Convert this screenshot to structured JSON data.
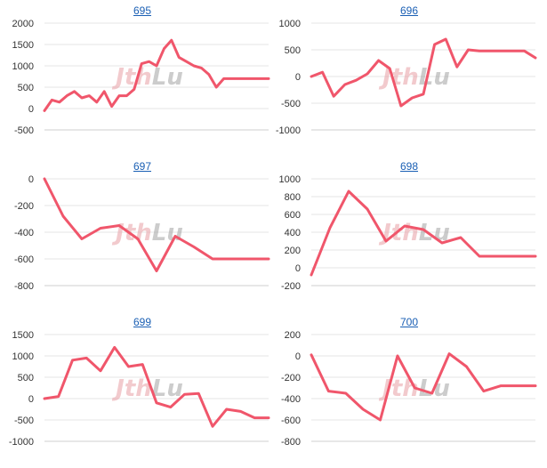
{
  "colors": {
    "line": "#f0566b",
    "title_link": "#1a5fb4",
    "watermark_red": "#e8a0a6",
    "watermark_gray": "#9a9a9a"
  },
  "watermark": {
    "part1": "Jth",
    "part2": "Lu"
  },
  "chart_data": [
    {
      "type": "line",
      "title": "695",
      "ylim": [
        -500,
        2000
      ],
      "yticks": [
        2000,
        1500,
        1000,
        500,
        0,
        -500
      ],
      "x": [
        0,
        1,
        2,
        3,
        4,
        5,
        6,
        7,
        8,
        9,
        10,
        11,
        12,
        13,
        14,
        15,
        16,
        17,
        18,
        19,
        20,
        21,
        22,
        23,
        24,
        25,
        26,
        27,
        28,
        29,
        30
      ],
      "values": [
        -50,
        200,
        150,
        300,
        400,
        250,
        300,
        150,
        400,
        50,
        300,
        300,
        450,
        1050,
        1100,
        1000,
        1400,
        1600,
        1200,
        1100,
        1000,
        950,
        800,
        500,
        700,
        700,
        700,
        700,
        700,
        700,
        700
      ]
    },
    {
      "type": "line",
      "title": "696",
      "ylim": [
        -1000,
        1000
      ],
      "yticks": [
        1000,
        500,
        0,
        -500,
        -1000
      ],
      "x": [
        0,
        1,
        2,
        3,
        4,
        5,
        6,
        7,
        8,
        9,
        10,
        11,
        12,
        13,
        14,
        15,
        16,
        17,
        18,
        19,
        20
      ],
      "values": [
        0,
        80,
        -370,
        -150,
        -70,
        50,
        300,
        150,
        -550,
        -400,
        -330,
        600,
        700,
        180,
        500,
        480,
        480,
        480,
        480,
        480,
        350
      ]
    },
    {
      "type": "line",
      "title": "697",
      "ylim": [
        -800,
        0
      ],
      "yticks": [
        0,
        -200,
        -400,
        -600,
        -800
      ],
      "x": [
        0,
        1,
        2,
        3,
        4,
        5,
        6,
        7,
        8,
        9,
        10,
        11,
        12
      ],
      "values": [
        0,
        -280,
        -450,
        -370,
        -350,
        -450,
        -690,
        -430,
        -510,
        -600,
        -600,
        -600,
        -600
      ]
    },
    {
      "type": "line",
      "title": "698",
      "ylim": [
        -200,
        1000
      ],
      "yticks": [
        1000,
        800,
        600,
        400,
        200,
        0,
        -200
      ],
      "x": [
        0,
        1,
        2,
        3,
        4,
        5,
        6,
        7,
        8,
        9,
        10,
        11,
        12
      ],
      "values": [
        -80,
        450,
        860,
        660,
        300,
        470,
        430,
        280,
        340,
        130,
        130,
        130,
        130
      ]
    },
    {
      "type": "line",
      "title": "699",
      "ylim": [
        -1000,
        1500
      ],
      "yticks": [
        1500,
        1000,
        500,
        0,
        -500,
        -1000
      ],
      "x": [
        0,
        1,
        2,
        3,
        4,
        5,
        6,
        7,
        8,
        9,
        10,
        11,
        12,
        13,
        14,
        15,
        16
      ],
      "values": [
        0,
        50,
        900,
        950,
        650,
        1200,
        750,
        800,
        -100,
        -200,
        100,
        120,
        -650,
        -250,
        -300,
        -450,
        -450
      ]
    },
    {
      "type": "line",
      "title": "700",
      "ylim": [
        -800,
        200
      ],
      "yticks": [
        200,
        0,
        -200,
        -400,
        -600,
        -800
      ],
      "x": [
        0,
        1,
        2,
        3,
        4,
        5,
        6,
        7,
        8,
        9,
        10,
        11,
        12,
        13
      ],
      "values": [
        10,
        -330,
        -350,
        -500,
        -600,
        0,
        -300,
        -350,
        20,
        -100,
        -330,
        -280,
        -280,
        -280
      ]
    }
  ]
}
